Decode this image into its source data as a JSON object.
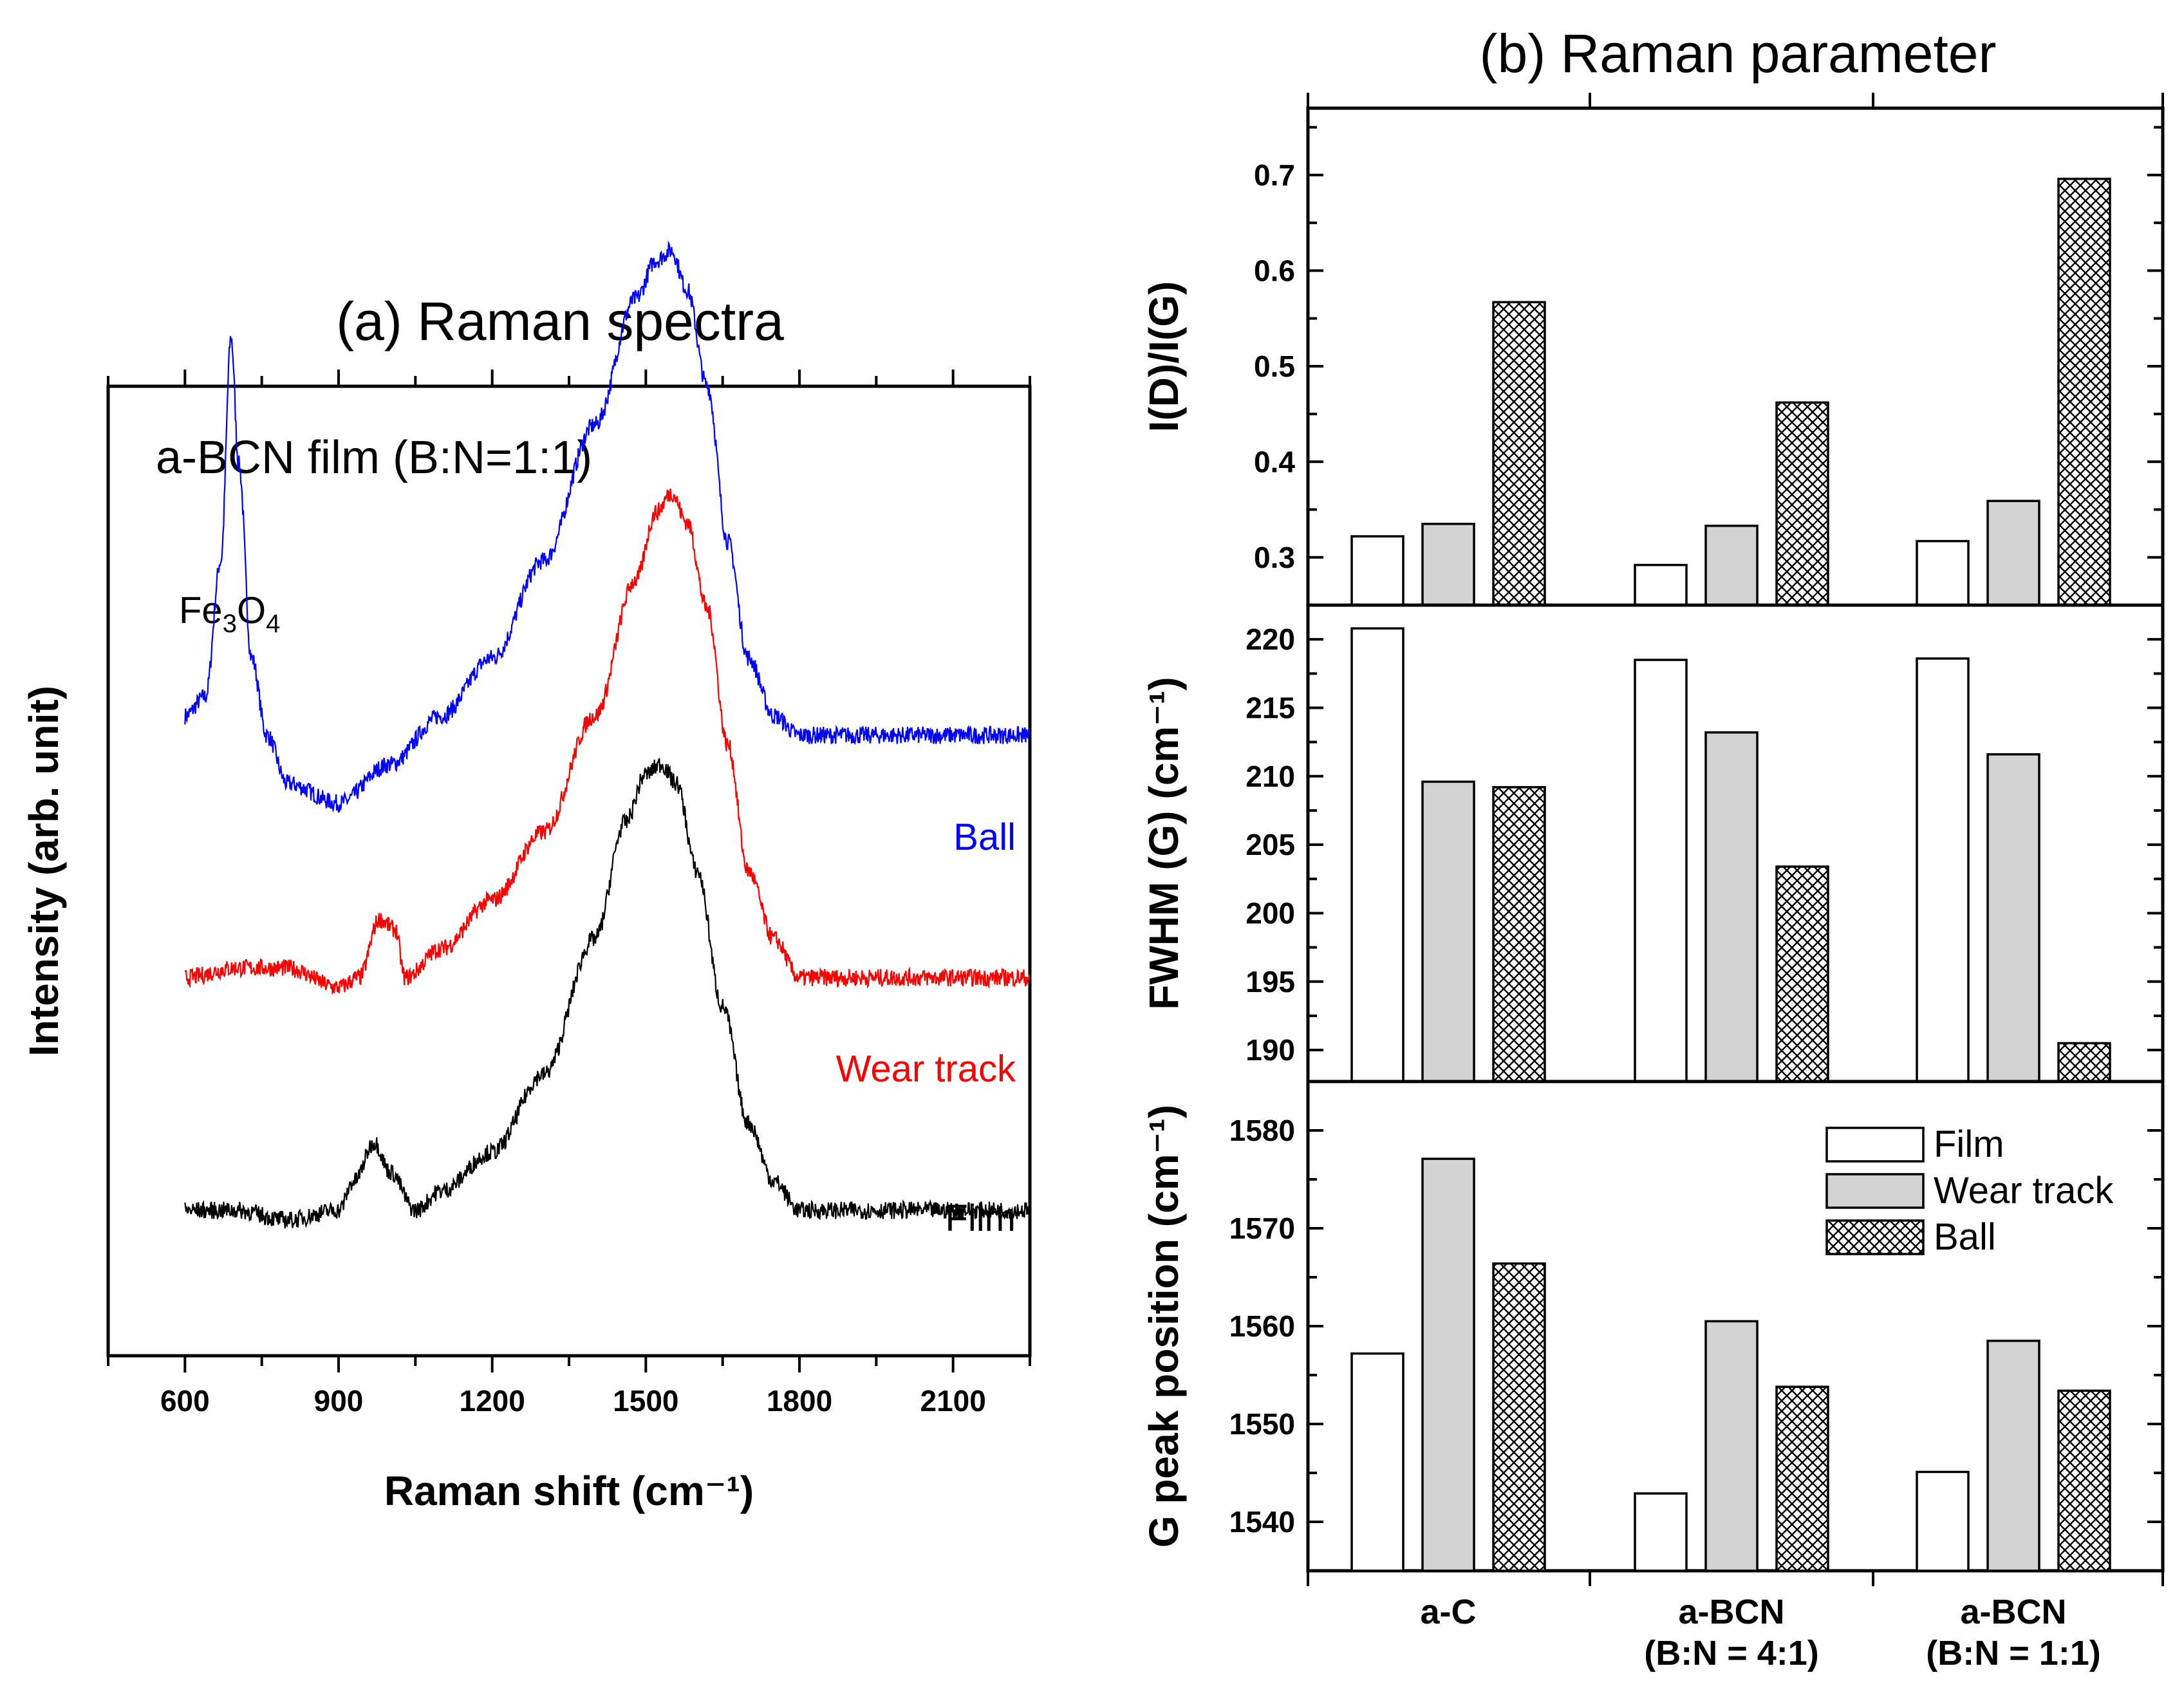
{
  "colors": {
    "ball": "#0000ff",
    "wear_track": "#ff0000",
    "film": "#000000",
    "film_bar": "#ffffff",
    "wear_bar": "#d3d3d3",
    "ball_bar": "hatch"
  },
  "chart_data": [
    {
      "type": "line",
      "title": "(a) Raman spectra",
      "inner_label": "a-BCN film (B:N=1:1)",
      "xlabel": "Raman shift (cm⁻¹)",
      "ylabel": "Intensity (arb. unit)",
      "xlim": [
        450,
        2250
      ],
      "xticks": [
        "600",
        "900",
        "1200",
        "1500",
        "1800",
        "2100"
      ],
      "annotation": {
        "text": "Fe3O4",
        "main": "Fe",
        "sub1": "3",
        "mid": "O",
        "sub2": "4"
      },
      "series": [
        {
          "name": "Ball",
          "offset": 0.62,
          "points": [
            [
              600,
              0.04
            ],
            [
              640,
              0.06
            ],
            [
              670,
              0.2
            ],
            [
              690,
              0.43
            ],
            [
              705,
              0.3
            ],
            [
              730,
              0.1
            ],
            [
              760,
              0.02
            ],
            [
              800,
              -0.03
            ],
            [
              900,
              -0.05
            ],
            [
              1000,
              -0.01
            ],
            [
              1100,
              0.04
            ],
            [
              1200,
              0.1
            ],
            [
              1300,
              0.2
            ],
            [
              1400,
              0.34
            ],
            [
              1480,
              0.47
            ],
            [
              1520,
              0.51
            ],
            [
              1550,
              0.52
            ],
            [
              1580,
              0.48
            ],
            [
              1620,
              0.38
            ],
            [
              1660,
              0.22
            ],
            [
              1700,
              0.1
            ],
            [
              1750,
              0.04
            ],
            [
              1800,
              0.02
            ],
            [
              1900,
              0.02
            ],
            [
              2000,
              0.02
            ],
            [
              2100,
              0.02
            ],
            [
              2250,
              0.02
            ]
          ]
        },
        {
          "name": "Wear track",
          "offset": 0.39,
          "points": [
            [
              600,
              0
            ],
            [
              700,
              0.01
            ],
            [
              800,
              0.01
            ],
            [
              900,
              -0.01
            ],
            [
              940,
              0.0
            ],
            [
              980,
              0.06
            ],
            [
              1010,
              0.05
            ],
            [
              1030,
              0.0
            ],
            [
              1100,
              0.03
            ],
            [
              1200,
              0.08
            ],
            [
              1300,
              0.15
            ],
            [
              1400,
              0.27
            ],
            [
              1480,
              0.41
            ],
            [
              1520,
              0.48
            ],
            [
              1550,
              0.5
            ],
            [
              1580,
              0.47
            ],
            [
              1620,
              0.38
            ],
            [
              1660,
              0.24
            ],
            [
              1700,
              0.11
            ],
            [
              1750,
              0.04
            ],
            [
              1800,
              0.0
            ],
            [
              1900,
              0.0
            ],
            [
              2000,
              0.0
            ],
            [
              2100,
              0.0
            ],
            [
              2250,
              0.0
            ]
          ]
        },
        {
          "name": "Film",
          "offset": 0.15,
          "points": [
            [
              600,
              0
            ],
            [
              700,
              0.0
            ],
            [
              800,
              -0.01
            ],
            [
              900,
              0.0
            ],
            [
              930,
              0.03
            ],
            [
              970,
              0.07
            ],
            [
              1000,
              0.04
            ],
            [
              1050,
              0.0
            ],
            [
              1100,
              0.02
            ],
            [
              1200,
              0.06
            ],
            [
              1300,
              0.14
            ],
            [
              1400,
              0.28
            ],
            [
              1460,
              0.4
            ],
            [
              1500,
              0.45
            ],
            [
              1530,
              0.46
            ],
            [
              1560,
              0.44
            ],
            [
              1600,
              0.35
            ],
            [
              1650,
              0.21
            ],
            [
              1700,
              0.09
            ],
            [
              1750,
              0.03
            ],
            [
              1800,
              0.0
            ],
            [
              1900,
              0.0
            ],
            [
              2000,
              0.0
            ],
            [
              2100,
              0.0
            ],
            [
              2250,
              0.0
            ]
          ]
        }
      ]
    },
    {
      "type": "bar",
      "title": "(b) Raman parameter",
      "categories": [
        "a-C",
        "a-BCN\n(B:N = 4:1)",
        "a-BCN\n(B:N = 1:1)"
      ],
      "category_lines": [
        [
          "a-C"
        ],
        [
          "a-BCN",
          "(B:N = 4:1)"
        ],
        [
          "a-BCN",
          "(B:N = 1:1)"
        ]
      ],
      "legend": {
        "position": "top-right",
        "entries": [
          "Film",
          "Wear track",
          "Ball"
        ]
      },
      "panels": [
        {
          "ylabel": "I(D)/I(G)",
          "ylim": [
            0.25,
            0.77
          ],
          "yticks": [
            "0.3",
            "0.4",
            "0.5",
            "0.6",
            "0.7"
          ],
          "series": [
            {
              "name": "Film",
              "values": [
                0.322,
                0.292,
                0.317
              ]
            },
            {
              "name": "Wear track",
              "values": [
                0.335,
                0.333,
                0.359
              ]
            },
            {
              "name": "Ball",
              "values": [
                0.567,
                0.462,
                0.696
              ]
            }
          ]
        },
        {
          "ylabel": "FWHM (G) (cm⁻¹)",
          "ylim": [
            187.7,
            222.5
          ],
          "yticks": [
            "190",
            "195",
            "200",
            "205",
            "210",
            "215",
            "220"
          ],
          "series": [
            {
              "name": "Film",
              "values": [
                220.8,
                218.5,
                218.6
              ]
            },
            {
              "name": "Wear track",
              "values": [
                209.6,
                213.2,
                211.6
              ]
            },
            {
              "name": "Ball",
              "values": [
                209.2,
                203.4,
                190.5
              ]
            }
          ]
        },
        {
          "ylabel": "G peak position (cm⁻¹)",
          "ylim": [
            1535,
            1585
          ],
          "yticks": [
            "1540",
            "1550",
            "1560",
            "1570",
            "1580"
          ],
          "series": [
            {
              "name": "Film",
              "values": [
                1557.2,
                1542.9,
                1545.1
              ]
            },
            {
              "name": "Wear track",
              "values": [
                1577.1,
                1560.5,
                1558.5
              ]
            },
            {
              "name": "Ball",
              "values": [
                1566.4,
                1553.8,
                1553.4
              ]
            }
          ]
        }
      ]
    }
  ]
}
